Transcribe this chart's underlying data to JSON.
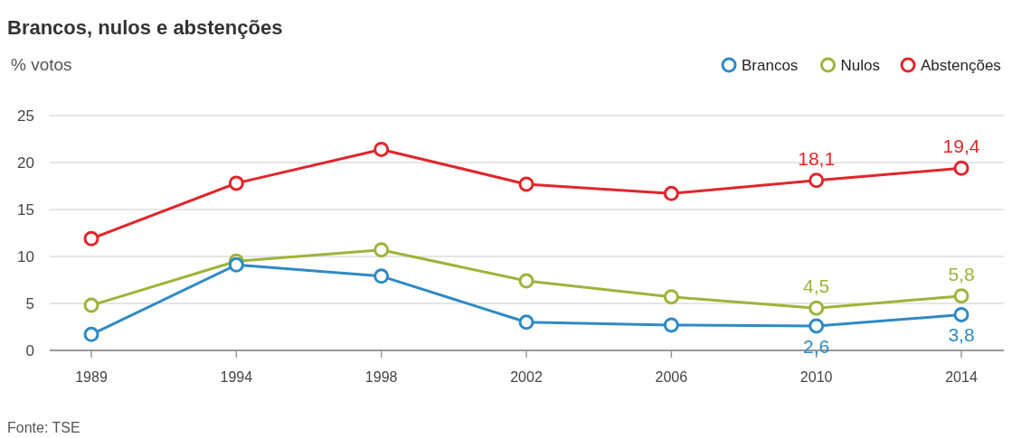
{
  "chart_data": {
    "type": "line",
    "title": "Brancos, nulos e abstenções",
    "ylabel": "% votos",
    "annotations": [
      "Fonte: TSE"
    ],
    "categories": [
      "1989",
      "1994",
      "1998",
      "2002",
      "2006",
      "2010",
      "2014"
    ],
    "series": [
      {
        "name": "Brancos",
        "color": "#2f8ac4",
        "values": [
          1.7,
          9.1,
          7.9,
          3.0,
          2.7,
          2.6,
          3.8
        ],
        "value_labels": [
          null,
          null,
          null,
          null,
          null,
          "2,6",
          "3,8"
        ]
      },
      {
        "name": "Nulos",
        "color": "#9cb43a",
        "values": [
          4.8,
          9.5,
          10.7,
          7.4,
          5.7,
          4.5,
          5.8
        ],
        "value_labels": [
          null,
          null,
          null,
          null,
          null,
          "4,5",
          "5,8"
        ]
      },
      {
        "name": "Abstenções",
        "color": "#e0262b",
        "values": [
          11.9,
          17.8,
          21.4,
          17.7,
          16.7,
          18.1,
          19.4
        ],
        "value_labels": [
          null,
          null,
          null,
          null,
          null,
          "18,1",
          "19,4"
        ]
      }
    ],
    "ylim": [
      0,
      25
    ],
    "yticks": [
      0,
      5,
      10,
      15,
      20,
      25
    ],
    "grid": "y",
    "legend": "top right",
    "marker": "circle",
    "line_style": "solid"
  }
}
